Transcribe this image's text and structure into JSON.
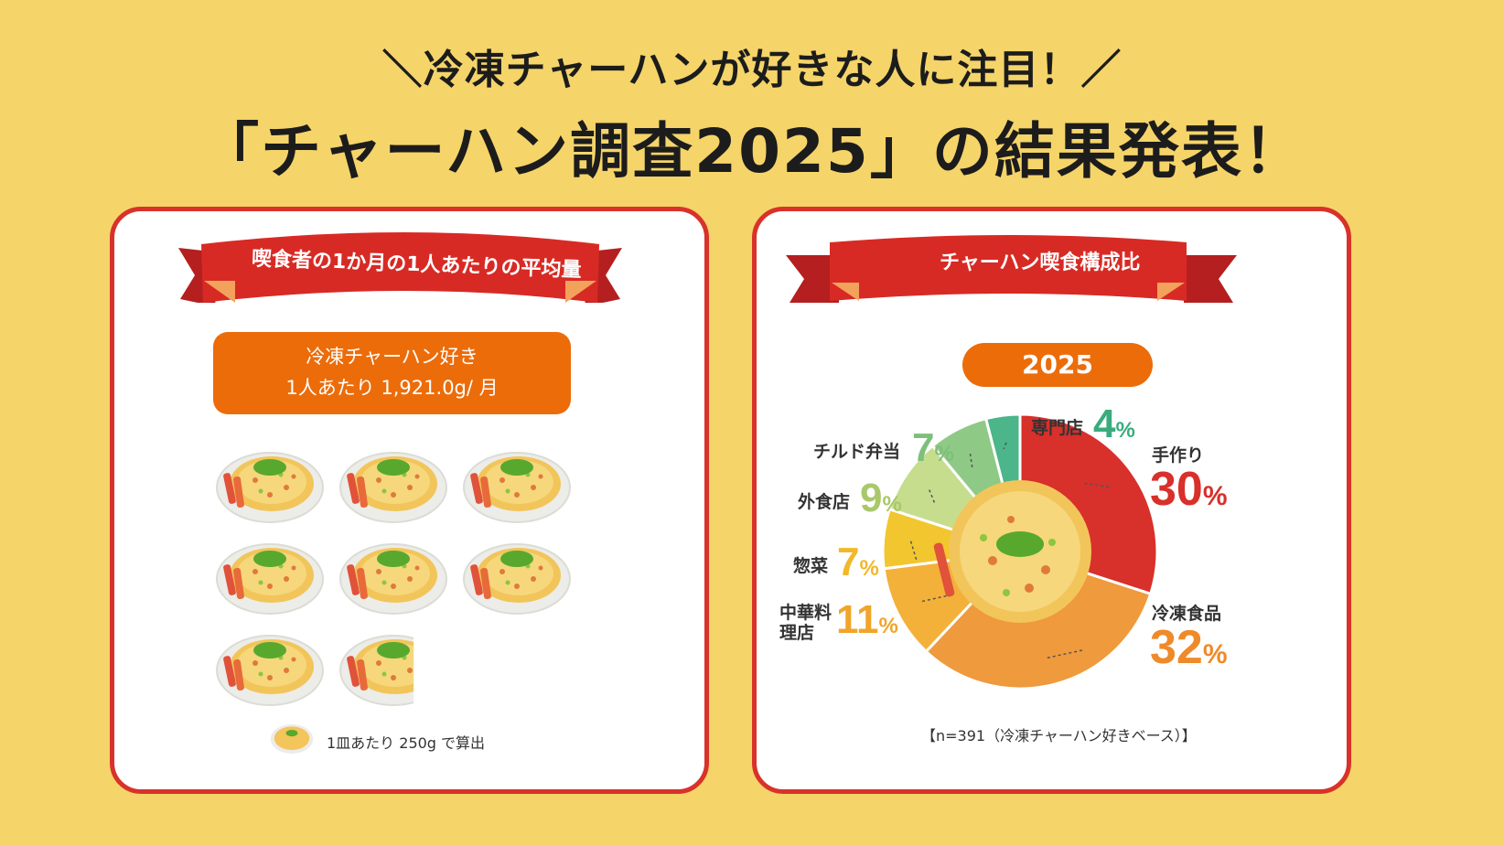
{
  "header": {
    "line1": "＼冷凍チャーハンが好きな人に注目！／",
    "line2": "「チャーハン調査2025」の結果発表！"
  },
  "left_card": {
    "ribbon": "喫食者の1か月の1人あたりの平均量",
    "badge_line1": "冷凍チャーハン好き",
    "badge_line2": "1人あたり 1,921.0g/ 月",
    "plate_count": 7.684,
    "footnote": "1皿あたり 250g で算出"
  },
  "right_card": {
    "ribbon": "チャーハン喫食構成比",
    "year": "2025",
    "footnote": "【n=391（冷凍チャーハン好きベース）】"
  },
  "chart_data": {
    "type": "pie",
    "title": "チャーハン喫食構成比",
    "subtitle": "2025",
    "unit": "%",
    "slices": [
      {
        "label": "手作り",
        "value": 30,
        "color": "#d8302b"
      },
      {
        "label": "冷凍食品",
        "value": 32,
        "color": "#ef9a3c"
      },
      {
        "label": "中華料理店",
        "value": 11,
        "color": "#f3b13a"
      },
      {
        "label": "惣菜",
        "value": 7,
        "color": "#f2c62f"
      },
      {
        "label": "外食店",
        "value": 9,
        "color": "#c7dd8e"
      },
      {
        "label": "チルド弁当",
        "value": 7,
        "color": "#8fc986"
      },
      {
        "label": "専門店",
        "value": 4,
        "color": "#4cb58a"
      }
    ],
    "note": "【n=391（冷凍チャーハン好きベース）】"
  }
}
